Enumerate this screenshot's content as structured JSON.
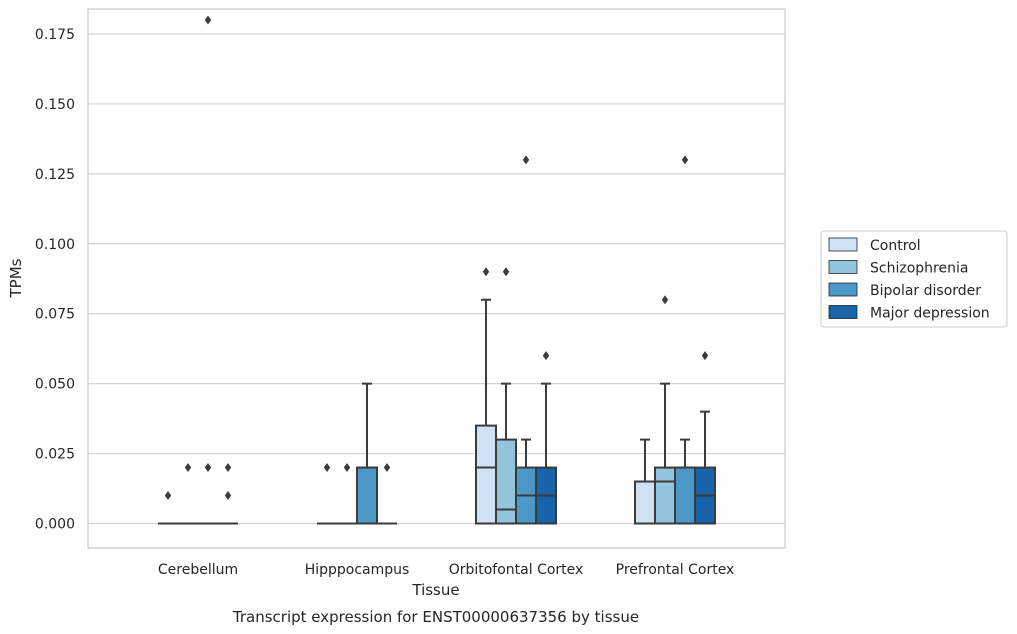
{
  "chart_data": {
    "type": "box",
    "title": "",
    "caption": "Transcript expression for ENST00000637356 by tissue",
    "xlabel": "Tissue",
    "ylabel": "TPMs",
    "ylim": [
      -0.009,
      0.19
    ],
    "yticks": [
      "0.000",
      "0.025",
      "0.050",
      "0.075",
      "0.100",
      "0.125",
      "0.150",
      "0.175"
    ],
    "grid": true,
    "legend_position": "right",
    "categories": [
      "Cerebellum",
      "Hipppocampus",
      "Orbitofontal Cortex",
      "Prefrontal Cortex"
    ],
    "series": [
      {
        "name": "Control",
        "color": "#cfe1f2",
        "boxes": [
          {
            "q1": 0,
            "median": 0,
            "q3": 0,
            "whislo": 0,
            "whishi": 0,
            "fliers": [
              0.01
            ]
          },
          {
            "q1": 0,
            "median": 0,
            "q3": 0,
            "whislo": 0,
            "whishi": 0,
            "fliers": [
              0.02
            ]
          },
          {
            "q1": 0,
            "median": 0.02,
            "q3": 0.035,
            "whislo": 0,
            "whishi": 0.08,
            "fliers": [
              0.09
            ]
          },
          {
            "q1": 0,
            "median": 0.015,
            "q3": 0.015,
            "whislo": 0,
            "whishi": 0.03,
            "fliers": []
          }
        ]
      },
      {
        "name": "Schizophrenia",
        "color": "#93c4de",
        "boxes": [
          {
            "q1": 0,
            "median": 0,
            "q3": 0,
            "whislo": 0,
            "whishi": 0,
            "fliers": [
              0.02
            ]
          },
          {
            "q1": 0,
            "median": 0,
            "q3": 0,
            "whislo": 0,
            "whishi": 0,
            "fliers": [
              0.02
            ]
          },
          {
            "q1": 0,
            "median": 0.005,
            "q3": 0.03,
            "whislo": 0,
            "whishi": 0.05,
            "fliers": [
              0.09
            ]
          },
          {
            "q1": 0,
            "median": 0.015,
            "q3": 0.02,
            "whislo": 0,
            "whishi": 0.05,
            "fliers": [
              0.08
            ]
          }
        ]
      },
      {
        "name": "Bipolar disorder",
        "color": "#4b98c9",
        "boxes": [
          {
            "q1": 0,
            "median": 0,
            "q3": 0,
            "whislo": 0,
            "whishi": 0,
            "fliers": [
              0.18,
              0.02
            ]
          },
          {
            "q1": 0,
            "median": 0.02,
            "q3": 0.02,
            "whislo": 0,
            "whishi": 0.05,
            "fliers": []
          },
          {
            "q1": 0,
            "median": 0.01,
            "q3": 0.02,
            "whislo": 0,
            "whishi": 0.03,
            "fliers": [
              0.13
            ]
          },
          {
            "q1": 0,
            "median": 0.02,
            "q3": 0.02,
            "whislo": 0,
            "whishi": 0.03,
            "fliers": [
              0.13
            ]
          }
        ]
      },
      {
        "name": "Major depression",
        "color": "#1764ab",
        "boxes": [
          {
            "q1": 0,
            "median": 0,
            "q3": 0,
            "whislo": 0,
            "whishi": 0,
            "fliers": [
              0.02,
              0.01
            ]
          },
          {
            "q1": 0,
            "median": 0,
            "q3": 0,
            "whislo": 0,
            "whishi": 0,
            "fliers": [
              0.02
            ]
          },
          {
            "q1": 0,
            "median": 0.01,
            "q3": 0.02,
            "whislo": 0,
            "whishi": 0.05,
            "fliers": [
              0.06
            ]
          },
          {
            "q1": 0,
            "median": 0.01,
            "q3": 0.02,
            "whislo": 0,
            "whishi": 0.04,
            "fliers": [
              0.06
            ]
          }
        ]
      }
    ]
  }
}
